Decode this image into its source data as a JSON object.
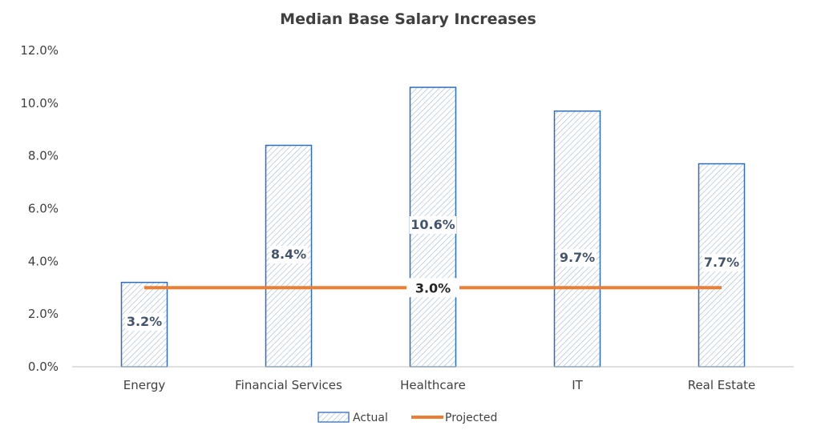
{
  "chart_data": {
    "type": "bar",
    "title": "Median Base Salary Increases",
    "categories": [
      "Energy",
      "Financial Services",
      "Healthcare",
      "IT",
      "Real Estate"
    ],
    "series": [
      {
        "name": "Actual",
        "type": "bar",
        "values": [
          3.2,
          8.4,
          10.6,
          9.7,
          7.7
        ],
        "labels": [
          "3.2%",
          "8.4%",
          "10.6%",
          "9.7%",
          "7.7%"
        ]
      },
      {
        "name": "Projected",
        "type": "line",
        "values": [
          3.0,
          3.0,
          3.0,
          3.0,
          3.0
        ],
        "label": "3.0%"
      }
    ],
    "ylim": [
      0,
      12
    ],
    "yticks": [
      {
        "value": 0,
        "label": "0.0%"
      },
      {
        "value": 2,
        "label": "2.0%"
      },
      {
        "value": 4,
        "label": "4.0%"
      },
      {
        "value": 6,
        "label": "6.0%"
      },
      {
        "value": 8,
        "label": "8.0%"
      },
      {
        "value": 10,
        "label": "10.0%"
      },
      {
        "value": 12,
        "label": "12.0%"
      }
    ],
    "xlabel": "",
    "ylabel": "",
    "grid": false,
    "legend_position": "bottom",
    "colors": {
      "bar_outline": "#2F6EBA",
      "bar_hatch": "#A9BCD6",
      "line": "#ED7D31",
      "axis": "#BFBFBF",
      "bar_label": "#44546A",
      "line_label": "#262626"
    }
  }
}
